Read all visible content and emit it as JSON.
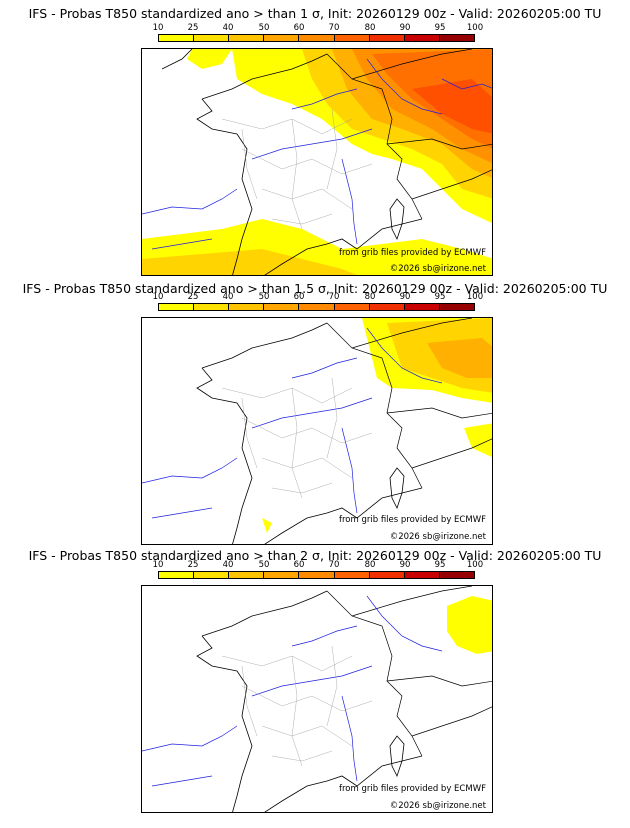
{
  "colorbar": {
    "labels": [
      "10",
      "25",
      "40",
      "50",
      "60",
      "70",
      "80",
      "90",
      "95",
      "100"
    ],
    "colors": [
      "#ffff00",
      "#ffe100",
      "#ffc400",
      "#ffa600",
      "#ff8a00",
      "#ff6200",
      "#f03000",
      "#c80000",
      "#960000",
      "#5a0000"
    ]
  },
  "panels": [
    {
      "title": "IFS - Probas T850  standardized ano > than 1 σ, Init: 20260129 00z - Valid: 20260205:00 TU",
      "credit1": "from grib files provided by ECMWF",
      "credit2": "©2026 sb@irizone.net"
    },
    {
      "title": "IFS - Probas T850  standardized ano > than 1.5 σ, Init: 20260129 00z - Valid: 20260205:00 TU",
      "credit1": "from grib files provided by ECMWF",
      "credit2": "©2026 sb@irizone.net"
    },
    {
      "title": "IFS - Probas T850  standardized ano > than 2 σ, Init: 20260129 00z - Valid: 20260205:00 TU",
      "credit1": "from grib files provided by ECMWF",
      "credit2": "©2026 sb@irizone.net"
    }
  ]
}
